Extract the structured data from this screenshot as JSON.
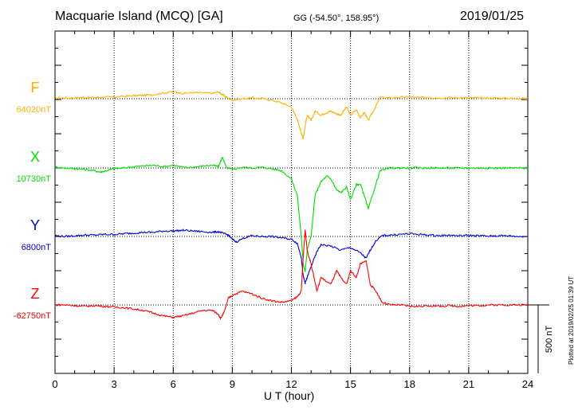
{
  "header": {
    "title": "Macquarie Island (MCQ)  [GA]",
    "coords": "GG (-54.50°, 158.95°)",
    "date": "2019/01/25"
  },
  "footer": {
    "plotted": "Plotted at 2019/02/25 01:39 UT"
  },
  "chart_data": {
    "type": "line",
    "title": "Macquarie Island (MCQ)  [GA]",
    "xlabel": "U T (hour)",
    "xlim": [
      0,
      24
    ],
    "xticks": [
      0,
      3,
      6,
      9,
      12,
      15,
      18,
      21,
      24
    ],
    "grid": true,
    "scale_bar": {
      "label": "500 nT",
      "value_nT": 500
    },
    "series": [
      {
        "name": "F",
        "baseline_label": "64020nT",
        "color": "#ffb000",
        "x": [
          0,
          0.5,
          1,
          1.5,
          2,
          2.5,
          3,
          3.5,
          4,
          4.5,
          5,
          5.5,
          6,
          6.5,
          7,
          7.5,
          8,
          8.3,
          8.5,
          8.7,
          9,
          9.5,
          10,
          10.5,
          11,
          11.5,
          12,
          12.3,
          12.5,
          12.6,
          12.7,
          12.8,
          13,
          13.2,
          13.5,
          13.8,
          14,
          14.3,
          14.5,
          14.8,
          15,
          15.3,
          15.5,
          15.7,
          15.9,
          16.2,
          16.5,
          17,
          17.5,
          18,
          18.5,
          19,
          19.5,
          20,
          20.5,
          21,
          21.5,
          22,
          22.5,
          23,
          23.5,
          24
        ],
        "y": [
          5,
          5,
          6,
          10,
          8,
          12,
          12,
          18,
          22,
          25,
          30,
          42,
          50,
          40,
          45,
          42,
          40,
          50,
          30,
          10,
          -10,
          0,
          5,
          2,
          -10,
          -30,
          -60,
          -150,
          -250,
          -290,
          -200,
          -120,
          -160,
          -90,
          -120,
          -100,
          -90,
          -110,
          -120,
          -60,
          -120,
          -80,
          -140,
          -100,
          -160,
          -80,
          10,
          5,
          10,
          12,
          8,
          10,
          5,
          8,
          7,
          5,
          6,
          4,
          5,
          3,
          2,
          0
        ]
      },
      {
        "name": "X",
        "baseline_label": "10730nT",
        "color": "#00dd00",
        "x": [
          0,
          0.5,
          1,
          1.5,
          2,
          2.3,
          2.6,
          3,
          3.5,
          4,
          4.5,
          5,
          5.5,
          6,
          6.5,
          7,
          7.5,
          8,
          8.3,
          8.5,
          8.7,
          9,
          9.5,
          10,
          10.5,
          11,
          11.5,
          12,
          12.3,
          12.5,
          12.6,
          12.7,
          12.8,
          13,
          13.2,
          13.5,
          13.8,
          14,
          14.3,
          14.5,
          14.8,
          15,
          15.3,
          15.5,
          15.7,
          15.9,
          16.2,
          16.5,
          17,
          17.5,
          18,
          18.5,
          19,
          19.5,
          20,
          20.5,
          21,
          21.5,
          22,
          22.5,
          23,
          23.5,
          24
        ],
        "y": [
          5,
          0,
          -5,
          -10,
          -20,
          -30,
          -20,
          -5,
          0,
          10,
          15,
          20,
          10,
          20,
          5,
          5,
          15,
          20,
          10,
          80,
          0,
          -10,
          5,
          0,
          5,
          -5,
          -20,
          -80,
          -200,
          -500,
          -700,
          -760,
          -600,
          -500,
          -200,
          -100,
          -60,
          -80,
          -160,
          -180,
          -140,
          -230,
          -120,
          -120,
          -200,
          -300,
          -160,
          -20,
          0,
          0,
          0,
          0,
          0,
          0,
          0,
          0,
          0,
          0,
          0,
          0,
          0,
          0,
          0
        ]
      },
      {
        "name": "Y",
        "baseline_label": "6800nT",
        "color": "#0000dd",
        "x": [
          0,
          0.5,
          1,
          1.5,
          2,
          2.5,
          3,
          3.5,
          4,
          4.5,
          5,
          5.5,
          6,
          6.5,
          7,
          7.5,
          8,
          8.3,
          8.6,
          8.8,
          9,
          9.2,
          9.6,
          10,
          10.5,
          11,
          11.5,
          12,
          12.3,
          12.5,
          12.6,
          12.7,
          12.8,
          13,
          13.3,
          13.5,
          14,
          14.5,
          15,
          15.5,
          15.8,
          16,
          16.3,
          16.6,
          17,
          17.5,
          18,
          18.5,
          19,
          19.5,
          20,
          20.5,
          21,
          21.5,
          22,
          22.5,
          23,
          23.5,
          24
        ],
        "y": [
          5,
          0,
          5,
          10,
          10,
          15,
          15,
          20,
          25,
          30,
          30,
          40,
          40,
          45,
          40,
          35,
          30,
          35,
          20,
          10,
          -20,
          -40,
          -10,
          5,
          0,
          0,
          -10,
          -20,
          -50,
          -150,
          -290,
          -340,
          -300,
          -220,
          -110,
          -60,
          -70,
          -100,
          -80,
          -120,
          -160,
          -100,
          -30,
          5,
          10,
          15,
          20,
          15,
          10,
          5,
          10,
          5,
          8,
          5,
          3,
          5,
          5,
          0,
          0
        ]
      },
      {
        "name": "Z",
        "baseline_label": "-62750nT",
        "color": "#ff0000",
        "x": [
          0,
          0.5,
          1,
          1.5,
          2,
          2.5,
          3,
          3.5,
          4,
          4.5,
          5,
          5.5,
          6,
          6.5,
          7,
          7.5,
          8,
          8.3,
          8.4,
          8.6,
          8.8,
          9,
          9.5,
          10,
          10.5,
          11,
          11.5,
          12,
          12.3,
          12.5,
          12.6,
          12.7,
          12.8,
          13,
          13.3,
          13.5,
          14,
          14.3,
          14.5,
          14.8,
          15,
          15.3,
          15.5,
          15.8,
          16,
          16.3,
          16.6,
          17,
          17.5,
          18,
          18.5,
          19,
          19.5,
          20,
          20.5,
          21,
          21.5,
          22,
          22.5,
          23,
          23.5,
          24
        ],
        "y": [
          0,
          0,
          -5,
          -10,
          -5,
          -10,
          -15,
          -20,
          -30,
          -40,
          -60,
          -80,
          -90,
          -80,
          -60,
          -40,
          -40,
          -70,
          -100,
          -50,
          50,
          70,
          100,
          80,
          50,
          30,
          20,
          30,
          60,
          100,
          350,
          550,
          400,
          300,
          100,
          200,
          150,
          250,
          200,
          150,
          250,
          200,
          300,
          320,
          150,
          100,
          20,
          0,
          0,
          -10,
          -10,
          -5,
          -10,
          -5,
          -10,
          -5,
          -5,
          0,
          0,
          0,
          0,
          0
        ]
      }
    ]
  }
}
